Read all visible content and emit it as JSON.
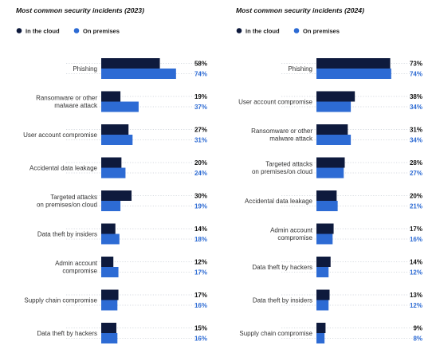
{
  "colors": {
    "cloud": "#0e1a3d",
    "premises": "#2d6bd4",
    "cloud_text": "#111111",
    "premises_text": "#2d6bd4"
  },
  "legend": {
    "cloud": "In the cloud",
    "premises": "On premises"
  },
  "chart_data": [
    {
      "type": "bar",
      "orientation": "horizontal",
      "title": "Most common security incidents (2023)",
      "legend_position": "top-left",
      "value_suffix": "%",
      "categories": [
        [
          "Phishing"
        ],
        [
          "Ransomware or other",
          "malware attack"
        ],
        [
          "User account compromise"
        ],
        [
          "Accidental data leakage"
        ],
        [
          "Targeted attacks",
          "on premises/on cloud"
        ],
        [
          "Data theft by insiders"
        ],
        [
          "Admin account",
          "compromise"
        ],
        [
          "Supply chain compromise"
        ],
        [
          "Data theft by hackers"
        ]
      ],
      "series": [
        {
          "name": "In the cloud",
          "values": [
            58,
            19,
            27,
            20,
            30,
            14,
            12,
            17,
            15
          ]
        },
        {
          "name": "On premises",
          "values": [
            74,
            37,
            31,
            24,
            19,
            18,
            17,
            16,
            16
          ]
        }
      ]
    },
    {
      "type": "bar",
      "orientation": "horizontal",
      "title": "Most common security incidents (2024)",
      "legend_position": "top-left",
      "value_suffix": "%",
      "categories": [
        [
          "Phishing"
        ],
        [
          "User account compromise"
        ],
        [
          "Ransomware or other",
          "malware attack"
        ],
        [
          "Targeted attacks",
          "on premises/on cloud"
        ],
        [
          "Accidental data leakage"
        ],
        [
          "Admin account",
          "compromise"
        ],
        [
          "Data theft by hackers"
        ],
        [
          "Data theft by insiders"
        ],
        [
          "Supply chain compromise"
        ]
      ],
      "series": [
        {
          "name": "In the cloud",
          "values": [
            73,
            38,
            31,
            28,
            20,
            17,
            14,
            13,
            9
          ]
        },
        {
          "name": "On premises",
          "values": [
            74,
            34,
            34,
            27,
            21,
            16,
            12,
            12,
            8
          ]
        }
      ]
    }
  ]
}
